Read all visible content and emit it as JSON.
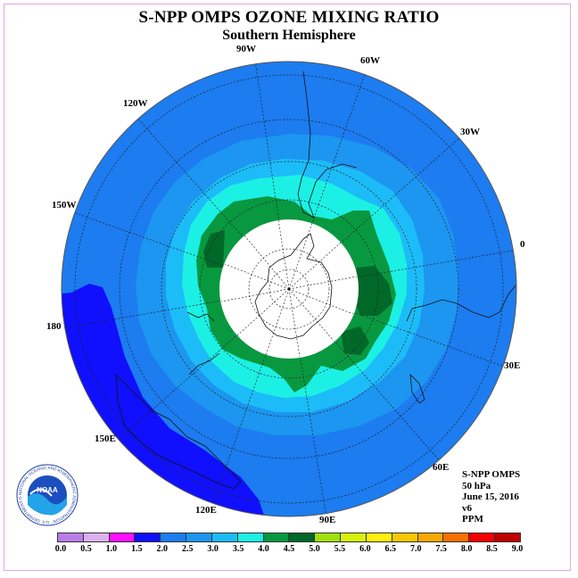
{
  "title": "S-NPP OMPS OZONE MIXING RATIO",
  "subtitle": "Southern Hemisphere",
  "longitude_labels": [
    "90W",
    "60W",
    "30W",
    "0",
    "30E",
    "60E",
    "90E",
    "120E",
    "150E",
    "180",
    "150W",
    "120W"
  ],
  "info": {
    "instrument": "S-NPP OMPS",
    "level": "50 hPa",
    "date": "June 15, 2016",
    "version": "v6",
    "units": "PPM"
  },
  "logo": {
    "name": "NOAA",
    "ring_text": "NATIONAL OCEANIC AND ATMOSPHERIC ADMINISTRATION · U.S. DEPARTMENT OF COMMERCE"
  },
  "colorbar": {
    "ticks": [
      "0.0",
      "0.5",
      "1.0",
      "1.5",
      "2.0",
      "2.5",
      "3.0",
      "3.5",
      "4.0",
      "4.5",
      "5.0",
      "5.5",
      "6.0",
      "6.5",
      "7.0",
      "7.5",
      "8.0",
      "8.5",
      "9.0"
    ],
    "colors": [
      "#b87ee8",
      "#dcb0f0",
      "#ff10ff",
      "#1010ff",
      "#1c7cf0",
      "#1c96f0",
      "#1cbcf8",
      "#1cf0e4",
      "#089840",
      "#006828",
      "#a0e010",
      "#d8f010",
      "#fff010",
      "#f8c800",
      "#f8a800",
      "#f87000",
      "#f80000",
      "#c00000"
    ]
  },
  "map_colors": {
    "background": "#1c7cf0",
    "level_2_0": "#1010ff",
    "level_3_0": "#1c96f0",
    "level_3_5": "#1cbcf8",
    "level_4_0": "#1cf0e4",
    "level_4_5": "#089840",
    "level_5_0": "#006828",
    "no_data": "#ffffff"
  }
}
